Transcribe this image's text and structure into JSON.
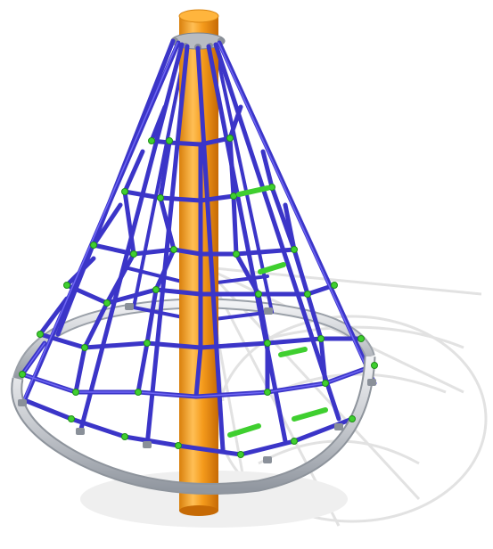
{
  "image": {
    "subject": "rope-pyramid-climbing-net",
    "colors": {
      "background": "#ffffff",
      "mast": "#f29a1a",
      "mast_highlight": "#ffc15a",
      "mast_shadow": "#c86f06",
      "rope": "#3b35c8",
      "rope_light": "#6e66ff",
      "connector": "#3fcf2f",
      "ring": "#cfd3d8",
      "ring_shadow": "#9aa0a8",
      "ground_shadow": "#e3e3e3"
    },
    "icons": [
      "mast",
      "rope-net",
      "ground-ring",
      "rope-connector",
      "top-hub"
    ]
  }
}
